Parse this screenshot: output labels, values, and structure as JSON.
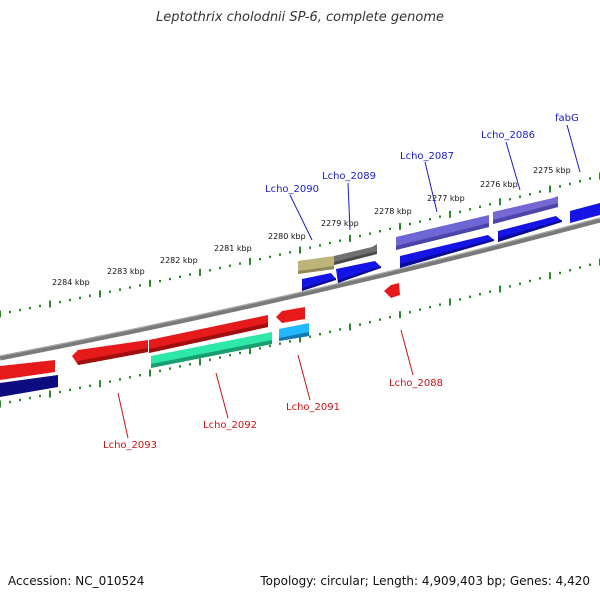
{
  "title": "Leptothrix cholodnii SP-6, complete genome",
  "footer": {
    "accession": "Accession: NC_010524",
    "summary": "Topology: circular; Length: 4,909,403 bp; Genes: 4,420"
  },
  "colors": {
    "backbone": "#7a7a7a",
    "tick": "#2a8a2a",
    "label_top": "#1a1acc",
    "label_bottom": "#cc1111"
  },
  "scale_ticks": [
    "2284 kbp",
    "2283 kbp",
    "2282 kbp",
    "2281 kbp",
    "2280 kbp",
    "2279 kbp",
    "2278 kbp",
    "2277 kbp",
    "2276 kbp",
    "2275 kbp"
  ],
  "gene_labels_top": [
    "Lcho_2090",
    "Lcho_2089",
    "Lcho_2087",
    "Lcho_2086",
    "fabG"
  ],
  "gene_labels_bottom": [
    "Lcho_2093",
    "Lcho_2092",
    "Lcho_2091",
    "Lcho_2088"
  ]
}
